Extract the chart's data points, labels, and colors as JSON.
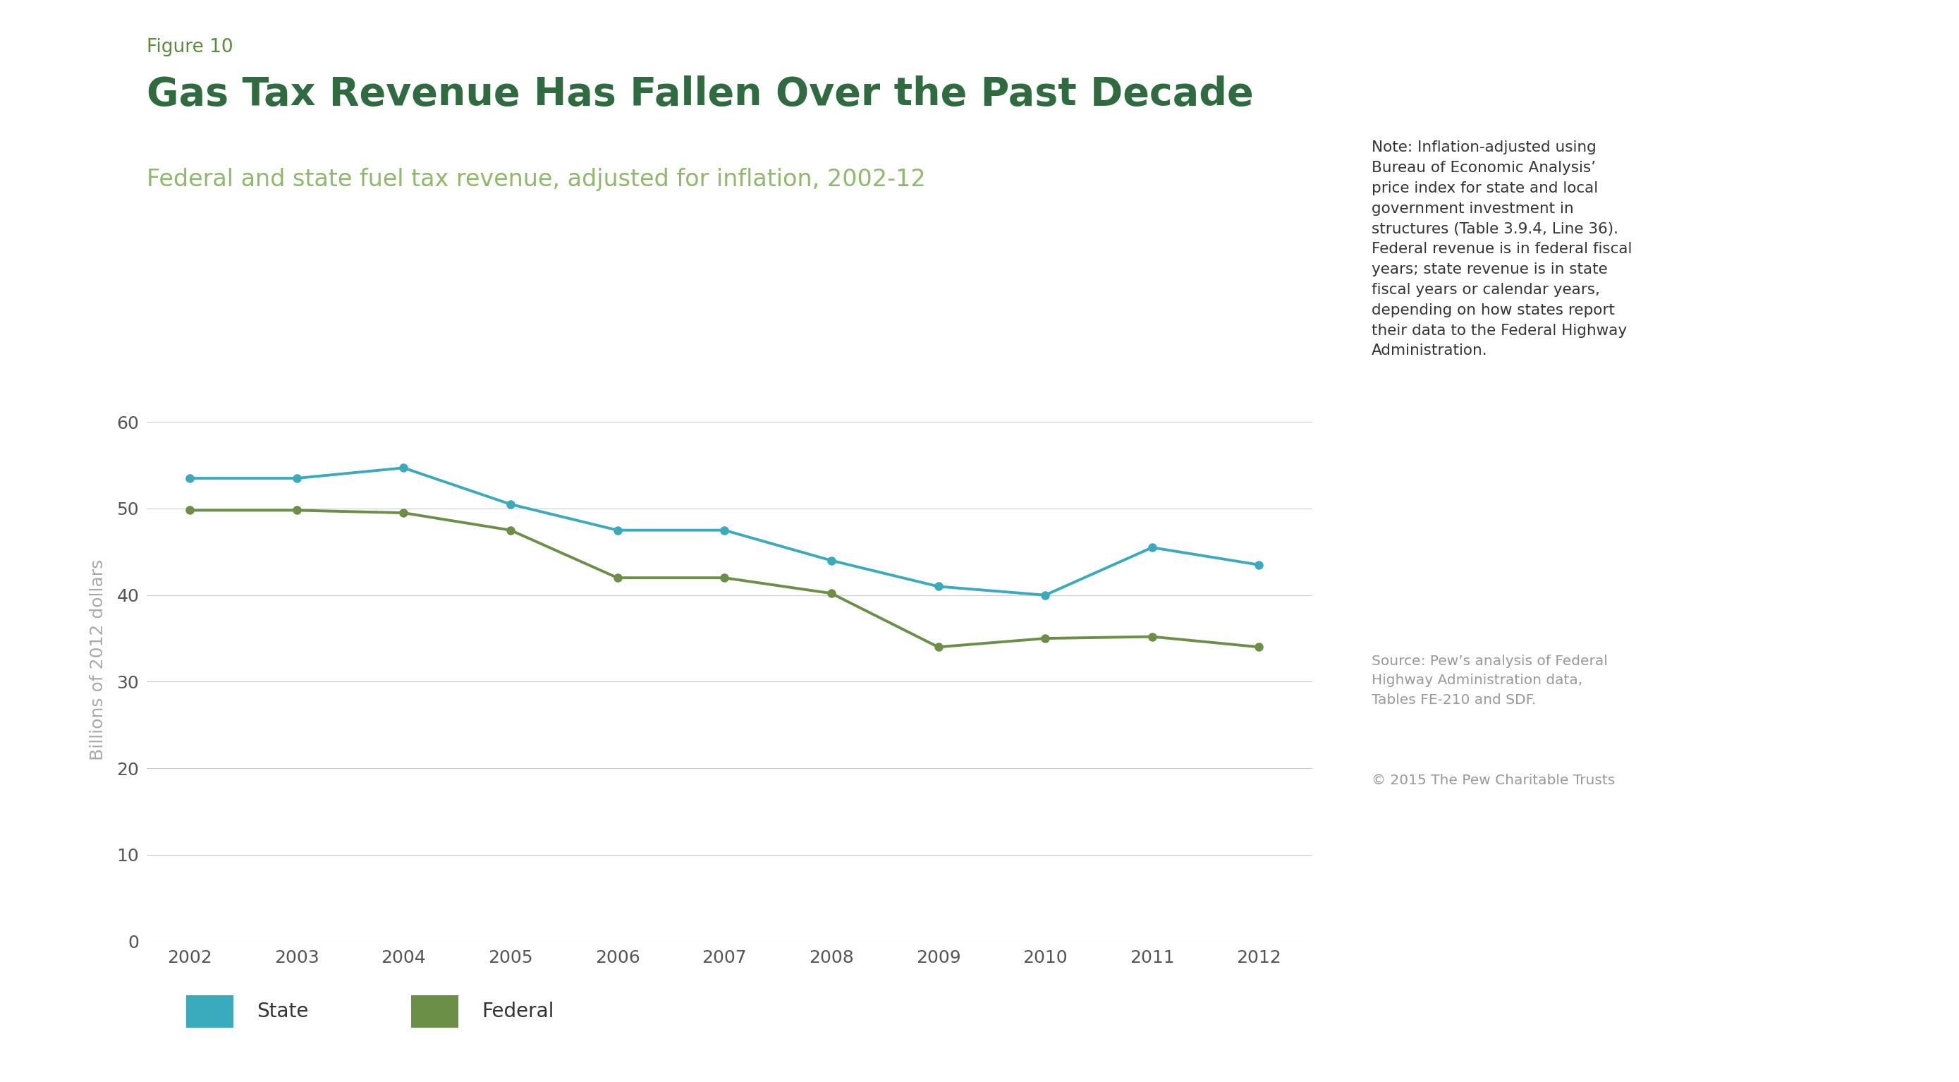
{
  "years": [
    2002,
    2003,
    2004,
    2005,
    2006,
    2007,
    2008,
    2009,
    2010,
    2011,
    2012
  ],
  "state_values": [
    53.5,
    53.5,
    54.7,
    50.5,
    47.5,
    47.5,
    44.0,
    41.0,
    40.0,
    45.5,
    43.5
  ],
  "federal_values": [
    49.8,
    49.8,
    49.5,
    47.5,
    42.0,
    42.0,
    40.2,
    34.0,
    35.0,
    35.2,
    34.0
  ],
  "state_color": "#3aabbd",
  "federal_color": "#6b8f47",
  "figure_label": "Figure 10",
  "title": "Gas Tax Revenue Has Fallen Over the Past Decade",
  "subtitle": "Federal and state fuel tax revenue, adjusted for inflation, 2002-12",
  "ylabel": "Billions of 2012 dollars",
  "ylim": [
    0,
    65
  ],
  "yticks": [
    0,
    10,
    20,
    30,
    40,
    50,
    60
  ],
  "note_text": "Note: Inflation-adjusted using\nBureau of Economic Analysis’\nprice index for state and local\ngovernment investment in\nstructures (Table 3.9.4, Line 36).\nFederal revenue is in federal fiscal\nyears; state revenue is in state\nfiscal years or calendar years,\ndepending on how states report\ntheir data to the Federal Highway\nAdministration.",
  "source_text": "Source: Pew’s analysis of Federal\nHighway Administration data,\nTables FE-210 and SDF.",
  "copyright_text": "© 2015 The Pew Charitable Trusts",
  "bg_color": "#ffffff",
  "grid_color": "#cccccc",
  "figure_label_color": "#5a8a3c",
  "title_color": "#2e6b3e",
  "subtitle_color": "#8fba6a",
  "ylabel_color": "#aaaaaa",
  "tick_color": "#555555",
  "note_color": "#333333",
  "source_color": "#999999",
  "copyright_color": "#999999",
  "marker_size": 8,
  "line_width": 2.8
}
